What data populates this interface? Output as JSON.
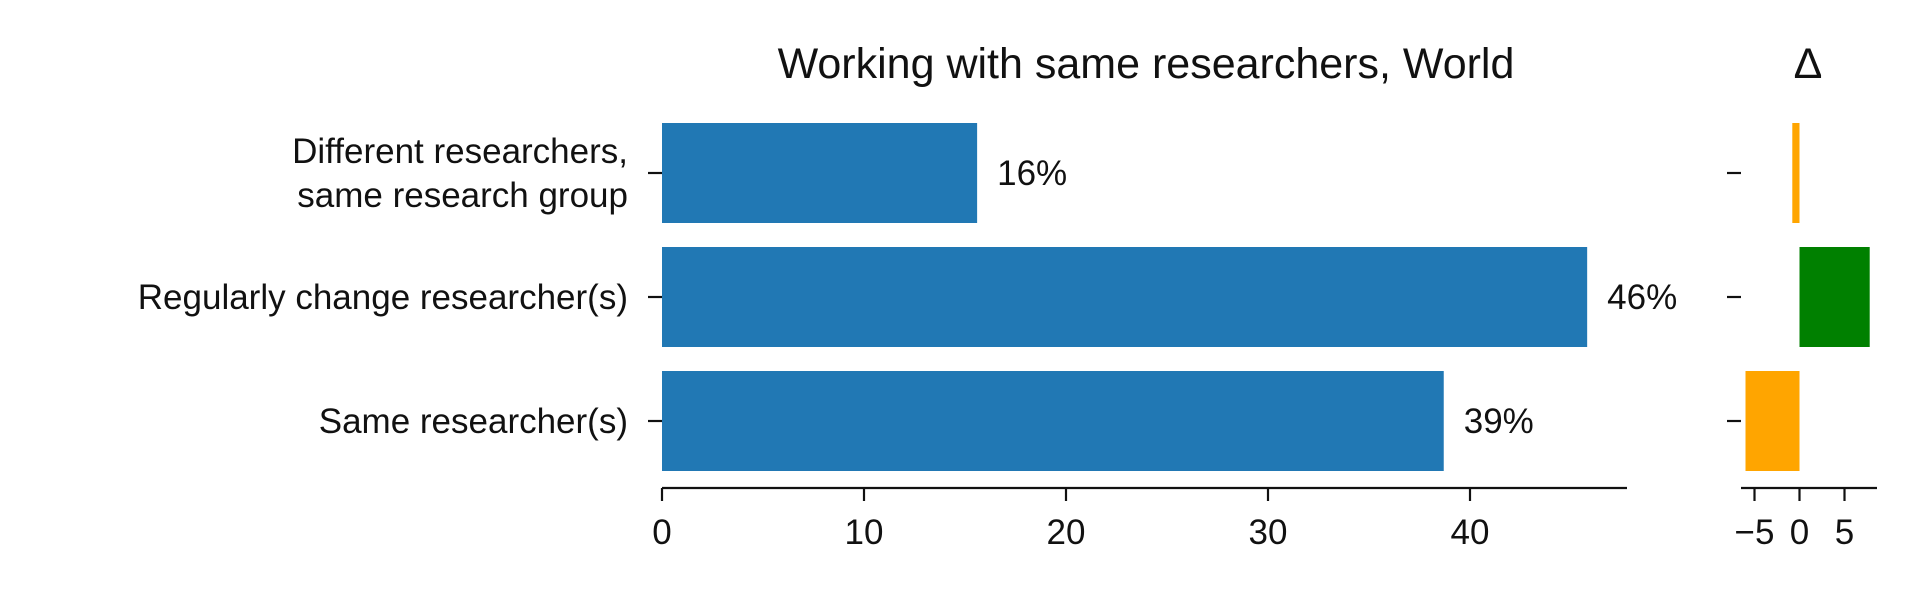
{
  "chart_data": [
    {
      "type": "bar",
      "orientation": "horizontal",
      "title": "Working with same researchers, World",
      "categories": [
        "Different researchers, same research group",
        "Regularly change researcher(s)",
        "Same researcher(s)"
      ],
      "category_lines": [
        [
          "Different researchers,",
          "same research group"
        ],
        [
          "Regularly change researcher(s)"
        ],
        [
          "Same researcher(s)"
        ]
      ],
      "values": [
        15.6,
        45.8,
        38.7
      ],
      "value_labels": [
        "16%",
        "46%",
        "39%"
      ],
      "xlim": [
        0,
        48
      ],
      "xticks": [
        0,
        10,
        20,
        30,
        40
      ],
      "bar_color": "#2178b4",
      "grid": false
    },
    {
      "type": "bar",
      "orientation": "horizontal",
      "title": "Δ",
      "categories": [
        "Different researchers, same research group",
        "Regularly change researcher(s)",
        "Same researcher(s)"
      ],
      "values": [
        -0.8,
        7.8,
        -6.0
      ],
      "xlim": [
        -6.5,
        8.5
      ],
      "xticks": [
        -5,
        0,
        5
      ],
      "xtick_labels": [
        "−5",
        "0",
        "5"
      ],
      "colors": {
        "positive": "#008000",
        "negative": "#ffa500"
      },
      "grid": false
    }
  ]
}
